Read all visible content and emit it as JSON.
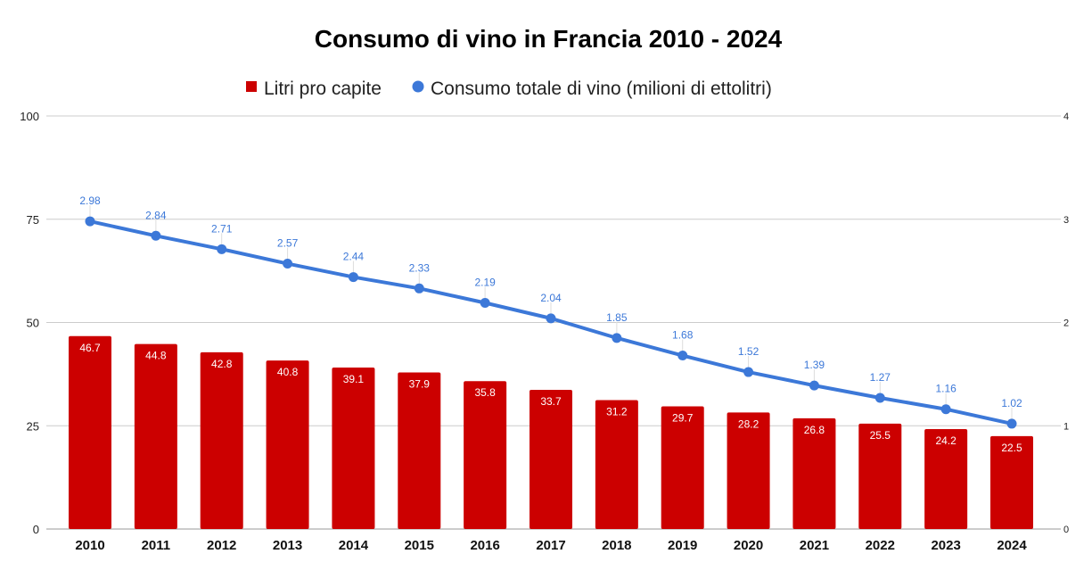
{
  "chart_data": {
    "type": "bar+line",
    "title": "Consumo di vino in Francia 2010 - 2024",
    "legend_position": "top",
    "grid": true,
    "categories": [
      "2010",
      "2011",
      "2012",
      "2013",
      "2014",
      "2015",
      "2016",
      "2017",
      "2018",
      "2019",
      "2020",
      "2021",
      "2022",
      "2023",
      "2024"
    ],
    "left_axis": {
      "ylim": [
        0,
        100
      ],
      "ticks": [
        "0",
        "25",
        "50",
        "75",
        "100"
      ]
    },
    "right_axis": {
      "ylim": [
        0,
        4
      ],
      "ticks": [
        "0",
        "1",
        "2",
        "3",
        "4"
      ]
    },
    "series": [
      {
        "name": "Litri pro capite",
        "type": "bar",
        "axis": "left",
        "color": "#cc0000",
        "values": [
          46.7,
          44.8,
          42.8,
          40.8,
          39.1,
          37.9,
          35.8,
          33.7,
          31.2,
          29.7,
          28.2,
          26.8,
          25.5,
          24.2,
          22.5
        ],
        "labels": [
          "46.7",
          "44.8",
          "42.8",
          "40.8",
          "39.1",
          "37.9",
          "35.8",
          "33.7",
          "31.2",
          "29.7",
          "28.2",
          "26.8",
          "25.5",
          "24.2",
          "22.5"
        ]
      },
      {
        "name": "Consumo totale di vino (milioni di ettolitri)",
        "type": "line",
        "axis": "right",
        "color": "#3c78d8",
        "values": [
          2.98,
          2.84,
          2.71,
          2.57,
          2.44,
          2.33,
          2.19,
          2.04,
          1.85,
          1.68,
          1.52,
          1.39,
          1.27,
          1.16,
          1.02
        ],
        "labels": [
          "2.98",
          "2.84",
          "2.71",
          "2.57",
          "2.44",
          "2.33",
          "2.19",
          "2.04",
          "1.85",
          "1.68",
          "1.52",
          "1.39",
          "1.27",
          "1.16",
          "1.02"
        ]
      }
    ]
  }
}
